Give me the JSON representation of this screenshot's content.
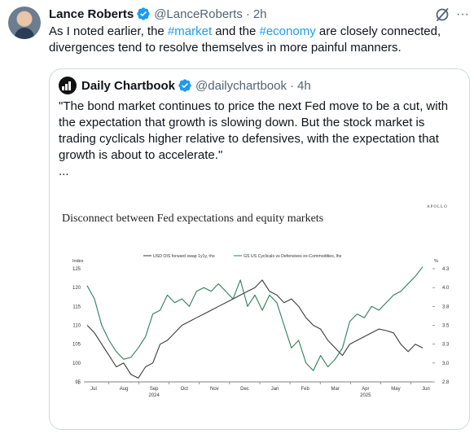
{
  "tweet": {
    "author_name": "Lance Roberts",
    "author_handle": "@LanceRoberts",
    "time": "2h",
    "text_before1": "As I noted earlier, the ",
    "hashtag1": "#market",
    "text_between": " and the ",
    "hashtag2": "#economy",
    "text_after": " are closely connected, divergences tend to resolve themselves in more painful manners."
  },
  "quote": {
    "author_name": "Daily Chartbook",
    "author_handle": "@dailychartbook",
    "time": "4h",
    "text": "\"The bond market continues to price the next Fed move to be a cut, with the expectation that growth is slowing down. But the stock market is trading cyclicals higher relative to defensives, with the expectation that growth is about to accelerate.\"",
    "ellipsis": "..."
  },
  "icons": {
    "verified": "verified-badge-icon",
    "grok": "grok-icon",
    "more": "more-icon"
  },
  "colors": {
    "accent": "#1d9bf0",
    "series_ois": "#3a3a3a",
    "series_gs": "#2e7d5b"
  },
  "chart_data": {
    "type": "line",
    "title": "Disconnect between Fed expectations and equity markets",
    "brand": "APOLLO",
    "left_axis_label": "Index",
    "right_axis_label": "%",
    "left_ticks": [
      "125",
      "120",
      "115",
      "110",
      "105",
      "100",
      "95"
    ],
    "right_ticks": [
      "4.3",
      "4.0",
      "3.8",
      "3.5",
      "3.3",
      "3.0",
      "2.8"
    ],
    "ylim_left": [
      95,
      125
    ],
    "ylim_right": [
      2.8,
      4.3
    ],
    "x_ticks": [
      "Jul",
      "Aug",
      "Sep",
      "Oct",
      "Nov",
      "Dec",
      "Jan",
      "Feb",
      "Mar",
      "Apr",
      "May",
      "Jun"
    ],
    "year_labels": [
      {
        "month": "Sep",
        "year": "2024"
      },
      {
        "month": "Apr",
        "year": "2025"
      }
    ],
    "series": [
      {
        "name": "USD OIS forward swap 1y1y, rhs",
        "axis": "right",
        "values": [
          3.55,
          3.45,
          3.3,
          3.15,
          3.0,
          3.05,
          2.9,
          2.85,
          3.0,
          3.05,
          3.3,
          3.35,
          3.45,
          3.55,
          3.6,
          3.65,
          3.7,
          3.75,
          3.8,
          3.85,
          3.9,
          3.95,
          4.0,
          4.05,
          4.15,
          4.0,
          3.95,
          3.85,
          3.9,
          3.8,
          3.65,
          3.55,
          3.5,
          3.35,
          3.25,
          3.15,
          3.3,
          3.35,
          3.4,
          3.45,
          3.5,
          3.48,
          3.45,
          3.3,
          3.2,
          3.3,
          3.25
        ]
      },
      {
        "name": "GS US Cyclicals vs Defensives ex-Commodities, lhs",
        "axis": "left",
        "values": [
          120.5,
          117,
          110,
          106,
          103,
          101,
          101.5,
          104,
          107,
          113,
          114,
          118,
          116,
          117,
          115,
          119,
          120,
          119,
          121,
          119,
          117,
          122,
          115,
          118,
          114,
          118,
          116,
          110,
          104,
          106,
          100,
          98,
          102,
          99,
          101,
          104,
          111,
          113,
          112,
          115,
          114,
          116,
          118,
          119,
          121,
          123,
          125.5
        ]
      }
    ]
  }
}
